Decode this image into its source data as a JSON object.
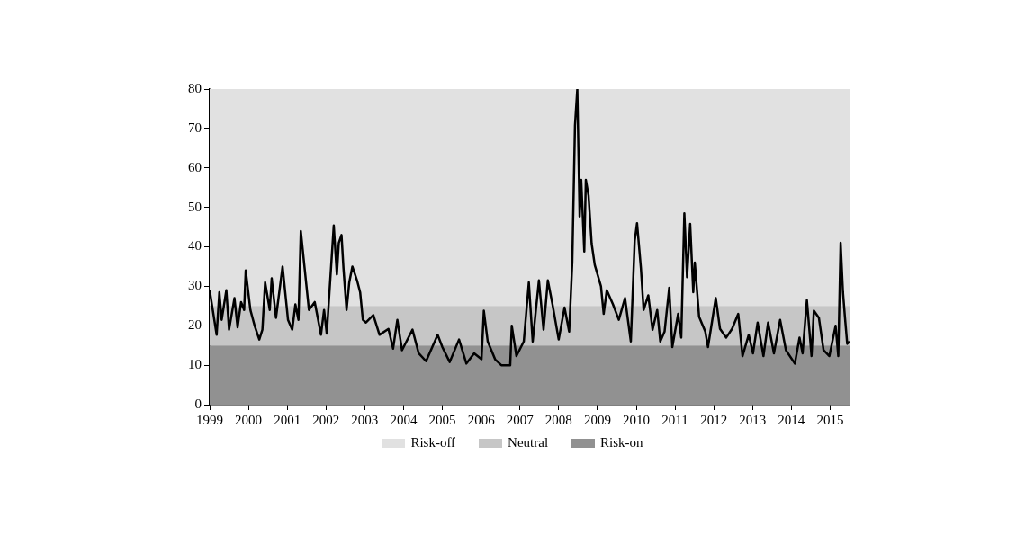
{
  "chart_data": {
    "type": "line",
    "xlim": [
      1999,
      2015.5
    ],
    "xticks": [
      1999,
      2000,
      2001,
      2002,
      2003,
      2004,
      2005,
      2006,
      2007,
      2008,
      2009,
      2010,
      2011,
      2012,
      2013,
      2014,
      2015
    ],
    "ylim": [
      0,
      80
    ],
    "yticks": [
      0,
      10,
      20,
      30,
      40,
      50,
      60,
      70,
      80
    ],
    "legend": "bottom",
    "marker": "none",
    "line_style": "solid",
    "bands": [
      {
        "axis": "y",
        "from": 25,
        "to": 80,
        "label": "Risk-off",
        "color": "#e1e1e1"
      },
      {
        "axis": "y",
        "from": 15,
        "to": 25,
        "label": "Neutral",
        "color": "#c6c6c6"
      },
      {
        "axis": "y",
        "from": 0,
        "to": 15,
        "label": "Risk-on",
        "color": "#919191"
      }
    ],
    "series": [
      {
        "color": "#000000",
        "x": [
          1999.0,
          1999.08,
          1999.18,
          1999.25,
          1999.31,
          1999.43,
          1999.5,
          1999.64,
          1999.72,
          1999.81,
          1999.89,
          1999.93,
          2000.05,
          2000.16,
          2000.28,
          2000.36,
          2000.43,
          2000.55,
          2000.6,
          2000.71,
          2000.88,
          2001.02,
          2001.13,
          2001.21,
          2001.29,
          2001.35,
          2001.44,
          2001.56,
          2001.71,
          2001.87,
          2001.95,
          2002.02,
          2002.2,
          2002.28,
          2002.33,
          2002.4,
          2002.45,
          2002.53,
          2002.6,
          2002.68,
          2002.8,
          2002.88,
          2002.95,
          2003.03,
          2003.22,
          2003.38,
          2003.61,
          2003.73,
          2003.84,
          2003.96,
          2004.23,
          2004.39,
          2004.58,
          2004.88,
          2005.0,
          2005.19,
          2005.43,
          2005.62,
          2005.82,
          2006.01,
          2006.07,
          2006.17,
          2006.36,
          2006.52,
          2006.75,
          2006.79,
          2006.91,
          2007.1,
          2007.23,
          2007.33,
          2007.49,
          2007.61,
          2007.72,
          2007.84,
          2008.0,
          2008.15,
          2008.27,
          2008.35,
          2008.42,
          2008.48,
          2008.54,
          2008.58,
          2008.66,
          2008.7,
          2008.77,
          2008.85,
          2008.93,
          2009.09,
          2009.16,
          2009.24,
          2009.4,
          2009.55,
          2009.71,
          2009.86,
          2009.96,
          2010.02,
          2010.12,
          2010.19,
          2010.31,
          2010.42,
          2010.54,
          2010.62,
          2010.73,
          2010.85,
          2010.93,
          2011.08,
          2011.16,
          2011.24,
          2011.31,
          2011.39,
          2011.47,
          2011.51,
          2011.62,
          2011.78,
          2011.85,
          2012.05,
          2012.16,
          2012.32,
          2012.47,
          2012.63,
          2012.74,
          2012.9,
          2013.01,
          2013.13,
          2013.28,
          2013.4,
          2013.55,
          2013.71,
          2013.86,
          2014.09,
          2014.21,
          2014.29,
          2014.4,
          2014.52,
          2014.58,
          2014.71,
          2014.83,
          2014.98,
          2015.14,
          2015.21,
          2015.27,
          2015.33,
          2015.38,
          2015.44,
          2015.5
        ],
        "values": [
          29,
          24,
          17.7,
          28.5,
          21.5,
          29,
          19,
          27,
          19.6,
          26,
          24,
          34,
          24,
          20,
          16.5,
          19,
          31,
          24,
          32,
          22,
          35,
          21.5,
          19,
          25.4,
          21.5,
          44,
          35.4,
          24,
          26,
          17.7,
          24,
          18,
          45.4,
          33,
          41,
          43,
          34.6,
          24,
          31,
          35,
          31.5,
          28.5,
          21.5,
          20.8,
          22.7,
          17.7,
          19.2,
          14.2,
          21.5,
          13.8,
          19,
          13,
          11,
          17.7,
          14.6,
          10.8,
          16.5,
          10.4,
          13,
          11.5,
          23.8,
          16,
          11.5,
          10,
          10,
          20,
          12.3,
          16,
          31,
          16,
          31.5,
          19,
          31.5,
          25.4,
          16.5,
          24.6,
          18.5,
          36,
          70.8,
          80,
          47.7,
          57,
          38.8,
          57,
          53,
          40.8,
          35.4,
          30,
          23,
          29,
          25.4,
          21.5,
          27,
          16,
          41.5,
          46,
          34.6,
          24,
          27.7,
          19,
          24,
          16,
          18.5,
          29.6,
          14.6,
          23,
          17,
          48.5,
          32.3,
          45.8,
          28.5,
          36,
          22.3,
          18.5,
          14.6,
          27,
          19.2,
          17,
          19.2,
          23,
          12.3,
          17.7,
          13,
          20.8,
          12.3,
          20.8,
          13,
          21.5,
          13.8,
          10.4,
          17,
          13,
          26.5,
          12.3,
          23.8,
          22,
          13.8,
          12.3,
          20,
          12.3,
          41,
          28.5,
          22.3,
          15.4,
          16
        ]
      }
    ]
  }
}
